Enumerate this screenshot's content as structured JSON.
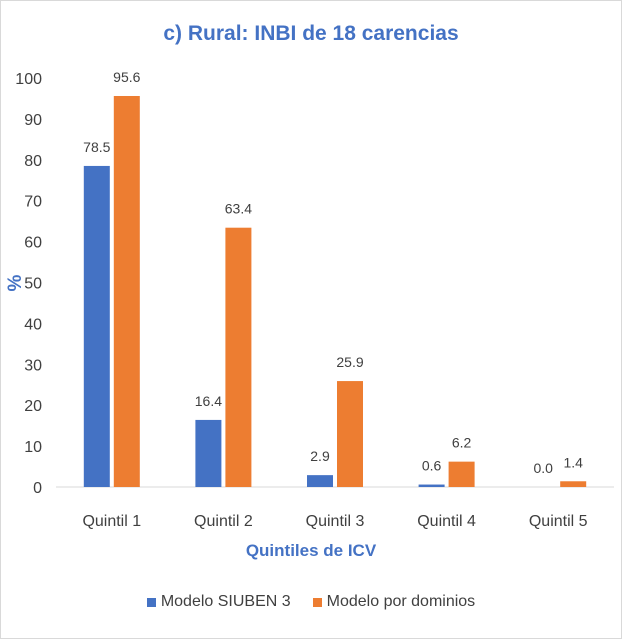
{
  "chart_data": {
    "type": "bar",
    "title": "c) Rural: INBI de 18 carencias",
    "xlabel": "Quintiles de ICV",
    "ylabel": "%",
    "categories": [
      "Quintil 1",
      "Quintil 2",
      "Quintil 3",
      "Quintil 4",
      "Quintil 5"
    ],
    "series": [
      {
        "name": "Modelo SIUBEN 3",
        "color": "#4472c4",
        "values": [
          78.5,
          16.4,
          2.9,
          0.6,
          0.0
        ]
      },
      {
        "name": "Modelo por dominios",
        "color": "#ed7d31",
        "values": [
          95.6,
          63.4,
          25.9,
          6.2,
          1.4
        ]
      }
    ],
    "ylim": [
      0,
      100
    ],
    "yticks": [
      0,
      10,
      20,
      30,
      40,
      50,
      60,
      70,
      80,
      90,
      100
    ],
    "grid": false,
    "legend_position": "bottom",
    "title_color": "#4472c4"
  }
}
